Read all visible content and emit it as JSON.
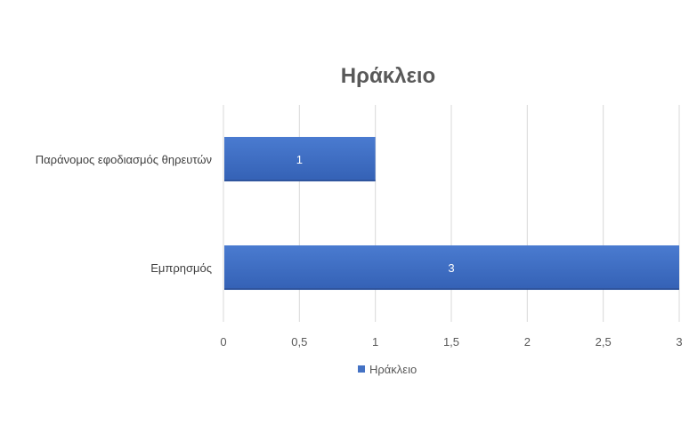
{
  "chart_data": {
    "type": "bar",
    "orientation": "horizontal",
    "title": "Ηράκλειο",
    "categories": [
      "Παράνομος εφοδιασμός θηρευτών",
      "Εμπρησμός"
    ],
    "series": [
      {
        "name": "Ηράκλειο",
        "values": [
          1,
          3
        ],
        "color": "#4472C4"
      }
    ],
    "xlim": [
      0,
      3
    ],
    "ticks": [
      0,
      0.5,
      1,
      1.5,
      2,
      2.5,
      3
    ],
    "tick_labels": [
      "0",
      "0,5",
      "1",
      "1,5",
      "2",
      "2,5",
      "3"
    ],
    "data_labels": [
      "1",
      "3"
    ],
    "grid": true,
    "legend": "bottom"
  }
}
